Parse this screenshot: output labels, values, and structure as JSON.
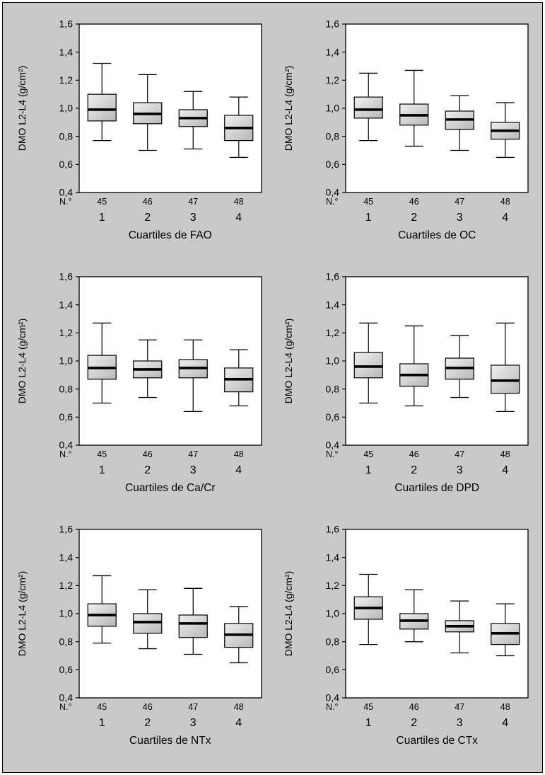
{
  "colors": {
    "background": "#c9c9c9",
    "plot_background": "#ffffff",
    "line": "#000000",
    "box_fill_light": "#f0f0f0",
    "box_fill_dark": "#b7b7b7"
  },
  "axis": {
    "y_label": "DMO L2-L4 (g/cm²)",
    "y_ticks": [
      0.4,
      0.6,
      0.8,
      1.0,
      1.2,
      1.4,
      1.6
    ],
    "ylim": [
      0.4,
      1.6
    ],
    "n_label": "N.°",
    "quartile_labels": [
      "1",
      "2",
      "3",
      "4"
    ]
  },
  "chart_data": [
    {
      "type": "boxplot",
      "title": "Cuartiles de FAO",
      "ylabel": "DMO L2-L4 (g/cm²)",
      "ylim": [
        0.4,
        1.6
      ],
      "categories": [
        "1",
        "2",
        "3",
        "4"
      ],
      "n": [
        45,
        46,
        47,
        48
      ],
      "boxes": [
        {
          "whisker_low": 0.77,
          "q1": 0.91,
          "median": 0.99,
          "q3": 1.1,
          "whisker_high": 1.32
        },
        {
          "whisker_low": 0.7,
          "q1": 0.89,
          "median": 0.96,
          "q3": 1.04,
          "whisker_high": 1.24
        },
        {
          "whisker_low": 0.71,
          "q1": 0.87,
          "median": 0.93,
          "q3": 0.99,
          "whisker_high": 1.12
        },
        {
          "whisker_low": 0.65,
          "q1": 0.77,
          "median": 0.86,
          "q3": 0.95,
          "whisker_high": 1.08
        }
      ]
    },
    {
      "type": "boxplot",
      "title": "Cuartiles de OC",
      "ylabel": "DMO L2-L4 (g/cm²)",
      "ylim": [
        0.4,
        1.6
      ],
      "categories": [
        "1",
        "2",
        "3",
        "4"
      ],
      "n": [
        45,
        46,
        47,
        48
      ],
      "boxes": [
        {
          "whisker_low": 0.77,
          "q1": 0.93,
          "median": 0.99,
          "q3": 1.08,
          "whisker_high": 1.25
        },
        {
          "whisker_low": 0.73,
          "q1": 0.88,
          "median": 0.95,
          "q3": 1.03,
          "whisker_high": 1.27
        },
        {
          "whisker_low": 0.7,
          "q1": 0.85,
          "median": 0.92,
          "q3": 0.98,
          "whisker_high": 1.09
        },
        {
          "whisker_low": 0.65,
          "q1": 0.78,
          "median": 0.84,
          "q3": 0.9,
          "whisker_high": 1.04
        }
      ]
    },
    {
      "type": "boxplot",
      "title": "Cuartiles de Ca/Cr",
      "ylabel": "DMO L2-L4 (g/cm²)",
      "ylim": [
        0.4,
        1.6
      ],
      "categories": [
        "1",
        "2",
        "3",
        "4"
      ],
      "n": [
        45,
        46,
        47,
        48
      ],
      "boxes": [
        {
          "whisker_low": 0.7,
          "q1": 0.87,
          "median": 0.95,
          "q3": 1.04,
          "whisker_high": 1.27
        },
        {
          "whisker_low": 0.74,
          "q1": 0.88,
          "median": 0.94,
          "q3": 1.0,
          "whisker_high": 1.15
        },
        {
          "whisker_low": 0.64,
          "q1": 0.88,
          "median": 0.95,
          "q3": 1.01,
          "whisker_high": 1.15
        },
        {
          "whisker_low": 0.68,
          "q1": 0.78,
          "median": 0.87,
          "q3": 0.95,
          "whisker_high": 1.08
        }
      ]
    },
    {
      "type": "boxplot",
      "title": "Cuartiles de DPD",
      "ylabel": "DMO L2-L4 (g/cm²)",
      "ylim": [
        0.4,
        1.6
      ],
      "categories": [
        "1",
        "2",
        "3",
        "4"
      ],
      "n": [
        45,
        46,
        47,
        48
      ],
      "boxes": [
        {
          "whisker_low": 0.7,
          "q1": 0.88,
          "median": 0.96,
          "q3": 1.06,
          "whisker_high": 1.27
        },
        {
          "whisker_low": 0.68,
          "q1": 0.82,
          "median": 0.9,
          "q3": 0.98,
          "whisker_high": 1.25
        },
        {
          "whisker_low": 0.74,
          "q1": 0.87,
          "median": 0.95,
          "q3": 1.02,
          "whisker_high": 1.18
        },
        {
          "whisker_low": 0.64,
          "q1": 0.77,
          "median": 0.86,
          "q3": 0.97,
          "whisker_high": 1.27
        }
      ]
    },
    {
      "type": "boxplot",
      "title": "Cuartiles de NTx",
      "ylabel": "DMO L2-L4 (g/cm²)",
      "ylim": [
        0.4,
        1.6
      ],
      "categories": [
        "1",
        "2",
        "3",
        "4"
      ],
      "n": [
        45,
        46,
        47,
        48
      ],
      "boxes": [
        {
          "whisker_low": 0.79,
          "q1": 0.91,
          "median": 0.99,
          "q3": 1.07,
          "whisker_high": 1.27
        },
        {
          "whisker_low": 0.75,
          "q1": 0.86,
          "median": 0.94,
          "q3": 1.0,
          "whisker_high": 1.17
        },
        {
          "whisker_low": 0.71,
          "q1": 0.83,
          "median": 0.93,
          "q3": 0.99,
          "whisker_high": 1.18
        },
        {
          "whisker_low": 0.65,
          "q1": 0.76,
          "median": 0.85,
          "q3": 0.93,
          "whisker_high": 1.05
        }
      ]
    },
    {
      "type": "boxplot",
      "title": "Cuartiles de CTx",
      "ylabel": "DMO L2-L4 (g/cm²)",
      "ylim": [
        0.4,
        1.6
      ],
      "categories": [
        "1",
        "2",
        "3",
        "4"
      ],
      "n": [
        45,
        46,
        47,
        48
      ],
      "boxes": [
        {
          "whisker_low": 0.78,
          "q1": 0.96,
          "median": 1.04,
          "q3": 1.12,
          "whisker_high": 1.28
        },
        {
          "whisker_low": 0.8,
          "q1": 0.89,
          "median": 0.95,
          "q3": 1.0,
          "whisker_high": 1.17
        },
        {
          "whisker_low": 0.72,
          "q1": 0.87,
          "median": 0.91,
          "q3": 0.95,
          "whisker_high": 1.09
        },
        {
          "whisker_low": 0.7,
          "q1": 0.78,
          "median": 0.86,
          "q3": 0.93,
          "whisker_high": 1.07
        }
      ]
    }
  ]
}
